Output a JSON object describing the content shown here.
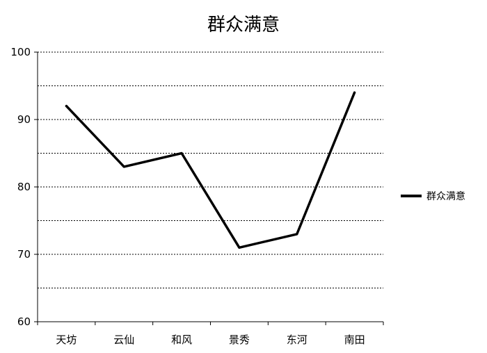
{
  "chart_data": {
    "type": "line",
    "title": "群众满意",
    "categories": [
      "天坊",
      "云仙",
      "和风",
      "景秀",
      "东河",
      "南田"
    ],
    "series": [
      {
        "name": "群众满意",
        "values": [
          92,
          83,
          85,
          71,
          73,
          94
        ],
        "color": "#000000"
      }
    ],
    "y_ticks": [
      60,
      70,
      80,
      90,
      100
    ],
    "ylim": [
      60,
      100
    ],
    "grid": "dotted horizontal at every 5",
    "legend": "right"
  }
}
